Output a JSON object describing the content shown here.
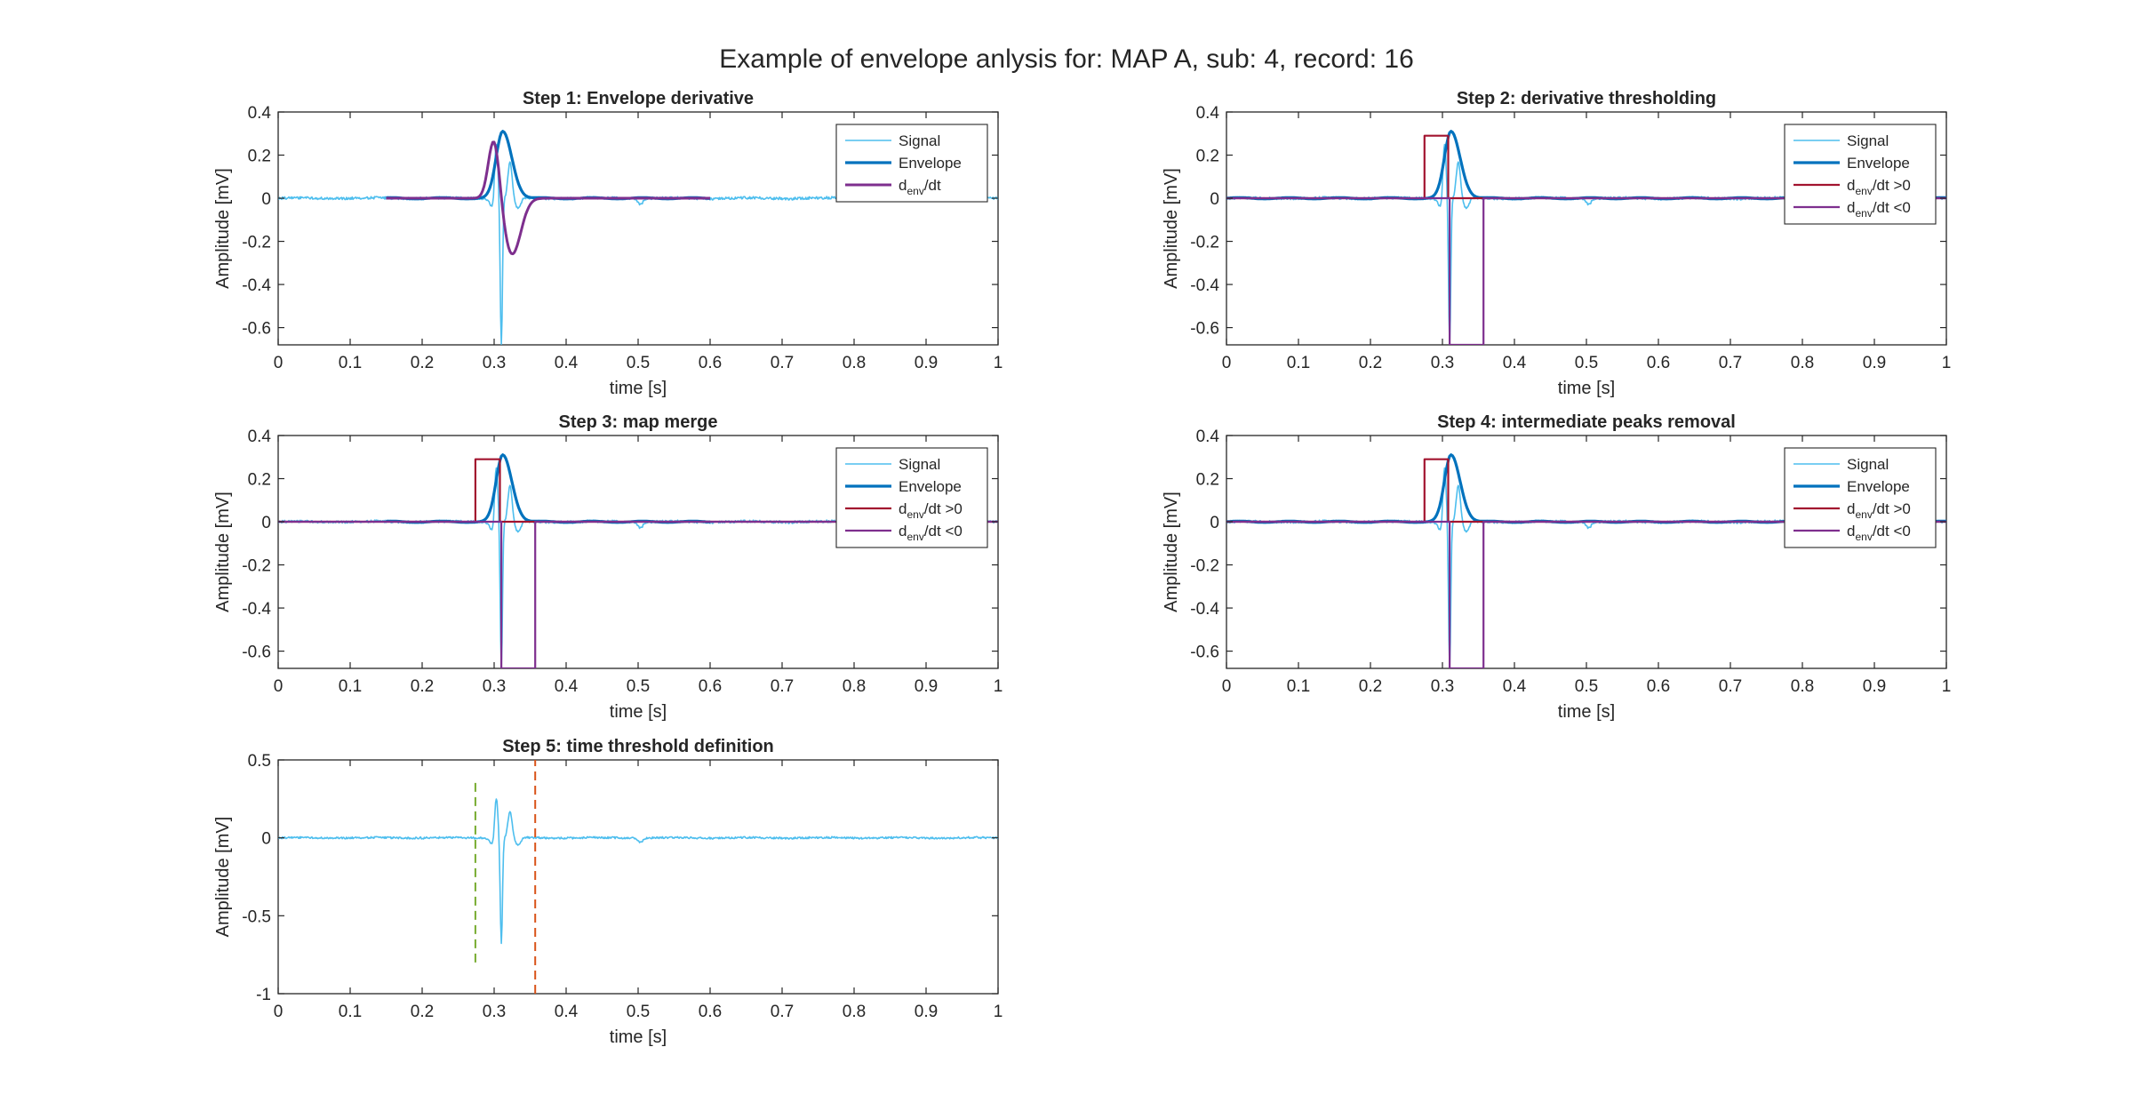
{
  "figure": {
    "title": "Example of envelope anlysis for: MAP A, sub: 4, record: 16"
  },
  "colors": {
    "signal": "#4DBEEE",
    "envelope": "#0072BD",
    "deriv": "#7E2F8E",
    "pos": "#A2142F",
    "neg": "#7E2F8E",
    "green_marker": "#77AC30",
    "red_marker": "#D95319"
  },
  "chart_data": [
    {
      "id": "step1",
      "type": "line",
      "title": "Step 1: Envelope derivative",
      "xlabel": "time [s]",
      "ylabel": "Amplitude [mV]",
      "xlim": [
        0,
        1
      ],
      "ylim": [
        -0.68,
        0.4
      ],
      "xticks": [
        0,
        0.1,
        0.2,
        0.3,
        0.4,
        0.5,
        0.6,
        0.7,
        0.8,
        0.9,
        1
      ],
      "yticks": [
        0.4,
        0.2,
        0,
        -0.2,
        -0.4,
        -0.6
      ],
      "legend_location": "top-right",
      "series": [
        {
          "name": "Signal",
          "role": "signal",
          "kind": "signal_trace"
        },
        {
          "name": "Envelope",
          "role": "envelope",
          "kind": "envelope_curve",
          "x_range": [
            0.15,
            0.6
          ],
          "peak_t": 0.312,
          "peak": 0.31
        },
        {
          "name": "d_env/dt",
          "role": "deriv",
          "kind": "derivative_curve",
          "x_range": [
            0.15,
            0.6
          ],
          "max": 0.29,
          "max_t": 0.3,
          "min": -0.26,
          "min_t": 0.325
        }
      ]
    },
    {
      "id": "step2",
      "type": "line",
      "title": "Step 2: derivative thresholding",
      "xlabel": "time [s]",
      "ylabel": "Amplitude [mV]",
      "xlim": [
        0,
        1
      ],
      "ylim": [
        -0.68,
        0.4
      ],
      "xticks": [
        0,
        0.1,
        0.2,
        0.3,
        0.4,
        0.5,
        0.6,
        0.7,
        0.8,
        0.9,
        1
      ],
      "yticks": [
        0.4,
        0.2,
        0,
        -0.2,
        -0.4,
        -0.6
      ],
      "legend_location": "top-right",
      "series": [
        {
          "name": "Signal",
          "role": "signal",
          "kind": "signal_trace"
        },
        {
          "name": "Envelope",
          "role": "envelope",
          "kind": "envelope_curve",
          "x_range": [
            0,
            1
          ],
          "peak_t": 0.312,
          "peak": 0.31
        },
        {
          "name": "d_env/dt >0",
          "role": "pos",
          "kind": "step_pulse",
          "start": 0.275,
          "end": 0.308,
          "level": 0.29
        },
        {
          "name": "d_env/dt <0",
          "role": "neg",
          "kind": "step_pulse",
          "start": 0.31,
          "end": 0.357,
          "level": -0.68
        }
      ]
    },
    {
      "id": "step3",
      "type": "line",
      "title": "Step 3: map merge",
      "xlabel": "time [s]",
      "ylabel": "Amplitude [mV]",
      "xlim": [
        0,
        1
      ],
      "ylim": [
        -0.68,
        0.4
      ],
      "xticks": [
        0,
        0.1,
        0.2,
        0.3,
        0.4,
        0.5,
        0.6,
        0.7,
        0.8,
        0.9,
        1
      ],
      "yticks": [
        0.4,
        0.2,
        0,
        -0.2,
        -0.4,
        -0.6
      ],
      "legend_location": "top-right",
      "series": [
        {
          "name": "Signal",
          "role": "signal",
          "kind": "signal_trace"
        },
        {
          "name": "Envelope",
          "role": "envelope",
          "kind": "envelope_curve",
          "x_range": [
            0.15,
            0.6
          ],
          "peak_t": 0.312,
          "peak": 0.31
        },
        {
          "name": "d_env/dt >0",
          "role": "pos",
          "kind": "step_pulse",
          "start": 0.274,
          "end": 0.308,
          "level": 0.29
        },
        {
          "name": "d_env/dt <0",
          "role": "neg",
          "kind": "step_pulse",
          "start": 0.31,
          "end": 0.357,
          "level": -0.68
        }
      ]
    },
    {
      "id": "step4",
      "type": "line",
      "title": "Step 4: intermediate peaks removal",
      "xlabel": "time [s]",
      "ylabel": "Amplitude [mV]",
      "xlim": [
        0,
        1
      ],
      "ylim": [
        -0.68,
        0.4
      ],
      "xticks": [
        0,
        0.1,
        0.2,
        0.3,
        0.4,
        0.5,
        0.6,
        0.7,
        0.8,
        0.9,
        1
      ],
      "yticks": [
        0.4,
        0.2,
        0,
        -0.2,
        -0.4,
        -0.6
      ],
      "legend_location": "top-right",
      "series": [
        {
          "name": "Signal",
          "role": "signal",
          "kind": "signal_trace"
        },
        {
          "name": "Envelope",
          "role": "envelope",
          "kind": "envelope_curve",
          "x_range": [
            0,
            1
          ],
          "peak_t": 0.312,
          "peak": 0.31
        },
        {
          "name": "d_env/dt >0",
          "role": "pos",
          "kind": "step_pulse",
          "start": 0.275,
          "end": 0.308,
          "level": 0.29
        },
        {
          "name": "d_env/dt <0",
          "role": "neg",
          "kind": "step_pulse",
          "start": 0.31,
          "end": 0.357,
          "level": -0.68
        }
      ]
    },
    {
      "id": "step5",
      "type": "line",
      "title": "Step 5: time threshold definition",
      "xlabel": "time [s]",
      "ylabel": "Amplitude [mV]",
      "xlim": [
        0,
        1
      ],
      "ylim": [
        -1,
        0.5
      ],
      "xticks": [
        0,
        0.1,
        0.2,
        0.3,
        0.4,
        0.5,
        0.6,
        0.7,
        0.8,
        0.9,
        1
      ],
      "yticks": [
        0.5,
        0,
        -0.5,
        -1
      ],
      "legend_location": "none",
      "series": [
        {
          "name": "Signal",
          "role": "signal",
          "kind": "signal_trace"
        },
        {
          "name": "start threshold",
          "role": "green_marker",
          "kind": "vline_dashed",
          "x": 0.274,
          "y_range": [
            -0.8,
            0.37
          ]
        },
        {
          "name": "end threshold",
          "role": "red_marker",
          "kind": "vline_dashed",
          "x": 0.357,
          "y_range": [
            -1,
            0.5
          ]
        }
      ]
    }
  ],
  "signal_model": {
    "baseline_noise": 0.006,
    "spikes": [
      {
        "t": 0.297,
        "a": -0.04,
        "w": 0.004
      },
      {
        "t": 0.303,
        "a": 0.26,
        "w": 0.003
      },
      {
        "t": 0.31,
        "a": -0.68,
        "w": 0.0022
      },
      {
        "t": 0.322,
        "a": 0.17,
        "w": 0.004
      },
      {
        "t": 0.333,
        "a": -0.05,
        "w": 0.005
      },
      {
        "t": 0.503,
        "a": -0.03,
        "w": 0.004
      }
    ]
  }
}
